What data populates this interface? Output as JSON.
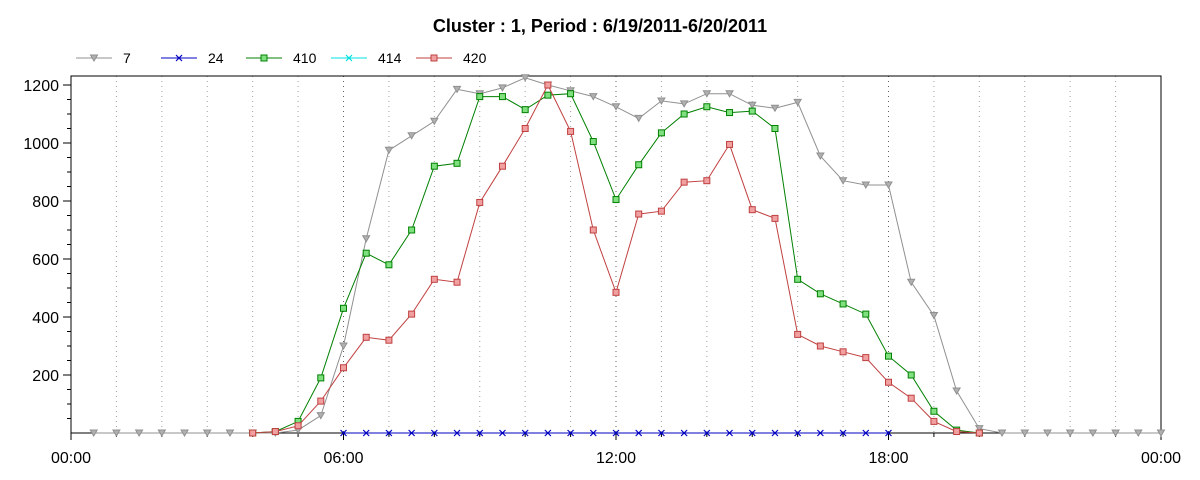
{
  "chart_data": {
    "type": "line",
    "title": "Cluster : 1, Period : 6/19/2011-6/20/2011",
    "xlabel": "",
    "ylabel": "",
    "x_ticks": [
      "00:00",
      "06:00",
      "12:00",
      "18:00",
      "00:00"
    ],
    "y_ticks": [
      "200",
      "400",
      "600",
      "800",
      "1000",
      "1200"
    ],
    "xlim": [
      0,
      24
    ],
    "ylim": [
      0,
      1200
    ],
    "grid": "vertical dotted",
    "legend_position": "top-left",
    "series": [
      {
        "name": "7",
        "color": "#909090",
        "marker": "triangle-down",
        "x": [
          0.5,
          1,
          1.5,
          2,
          2.5,
          3,
          3.5,
          4,
          4.5,
          5,
          5.5,
          6,
          6.5,
          7,
          7.5,
          8,
          8.5,
          9,
          9.5,
          10,
          10.5,
          11,
          11.5,
          12,
          12.5,
          13,
          13.5,
          14,
          14.5,
          15,
          15.5,
          16,
          16.5,
          17,
          17.5,
          18,
          18.5,
          19,
          19.5,
          20,
          20.5,
          21,
          21.5,
          22,
          22.5,
          23,
          23.5,
          24
        ],
        "y": [
          0,
          0,
          0,
          0,
          0,
          0,
          0,
          0,
          0,
          10,
          60,
          300,
          670,
          975,
          1025,
          1075,
          1185,
          1170,
          1190,
          1225,
          1200,
          1180,
          1160,
          1125,
          1085,
          1145,
          1135,
          1170,
          1170,
          1130,
          1120,
          1140,
          955,
          870,
          855,
          855,
          520,
          405,
          145,
          15,
          0,
          0,
          0,
          0,
          0,
          0,
          0,
          0
        ]
      },
      {
        "name": "24",
        "color": "#0000c0",
        "marker": "x",
        "x": [
          6,
          6.5,
          7,
          7.5,
          8,
          8.5,
          9,
          9.5,
          10,
          10.5,
          11,
          11.5,
          12,
          12.5,
          13,
          13.5,
          14,
          14.5,
          15,
          15.5,
          16,
          16.5,
          17,
          17.5,
          18
        ],
        "y": [
          0,
          0,
          0,
          0,
          0,
          0,
          0,
          0,
          0,
          0,
          0,
          0,
          0,
          0,
          0,
          0,
          0,
          0,
          0,
          0,
          0,
          0,
          0,
          0,
          0
        ]
      },
      {
        "name": "410",
        "color": "#008000",
        "marker": "square",
        "fill": "#80e080",
        "x": [
          4,
          4.5,
          5,
          5.5,
          6,
          6.5,
          7,
          7.5,
          8,
          8.5,
          9,
          9.5,
          10,
          10.5,
          11,
          11.5,
          12,
          12.5,
          13,
          13.5,
          14,
          14.5,
          15,
          15.5,
          16,
          16.5,
          17,
          17.5,
          18,
          18.5,
          19,
          19.5,
          20
        ],
        "y": [
          0,
          5,
          40,
          190,
          430,
          620,
          580,
          700,
          920,
          930,
          1160,
          1160,
          1115,
          1165,
          1170,
          1005,
          805,
          925,
          1035,
          1100,
          1125,
          1105,
          1110,
          1050,
          530,
          480,
          445,
          410,
          265,
          200,
          75,
          10,
          0
        ]
      },
      {
        "name": "414",
        "color": "#00e0e0",
        "marker": "x",
        "x": [],
        "y": []
      },
      {
        "name": "420",
        "color": "#c04040",
        "marker": "square",
        "fill": "#f0a0a0",
        "x": [
          4,
          4.5,
          5,
          5.5,
          6,
          6.5,
          7,
          7.5,
          8,
          8.5,
          9,
          9.5,
          10,
          10.5,
          11,
          11.5,
          12,
          12.5,
          13,
          13.5,
          14,
          14.5,
          15,
          15.5,
          16,
          16.5,
          17,
          17.5,
          18,
          18.5,
          19,
          19.5,
          20
        ],
        "y": [
          0,
          5,
          25,
          110,
          225,
          330,
          320,
          410,
          530,
          520,
          795,
          920,
          1050,
          1200,
          1040,
          700,
          485,
          755,
          765,
          865,
          870,
          995,
          770,
          740,
          340,
          300,
          280,
          260,
          175,
          120,
          40,
          5,
          0
        ]
      }
    ]
  }
}
